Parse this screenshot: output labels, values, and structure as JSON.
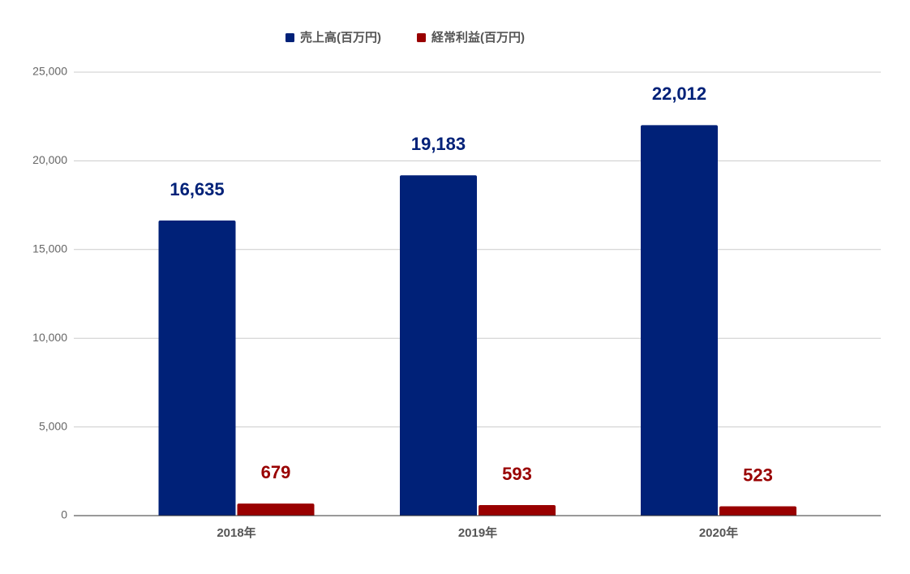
{
  "chart_data": {
    "type": "bar",
    "title": "",
    "xlabel": "",
    "ylabel": "",
    "categories": [
      "2018年",
      "2019年",
      "2020年"
    ],
    "series": [
      {
        "name": "売上高(百万円)",
        "values": [
          16635,
          19183,
          22012
        ],
        "labels": [
          "16,635",
          "19,183",
          "22,012"
        ],
        "color": "#002178"
      },
      {
        "name": "経常利益(百万円)",
        "values": [
          679,
          593,
          523
        ],
        "labels": [
          "679",
          "593",
          "523"
        ],
        "color": "#990000"
      }
    ],
    "ylim": [
      0,
      25000
    ],
    "yticks": [
      0,
      5000,
      10000,
      15000,
      20000,
      25000
    ],
    "ytick_labels": [
      "0",
      "5,000",
      "10,000",
      "15,000",
      "20,000",
      "25,000"
    ],
    "grid": true,
    "legend_position": "top-center",
    "data_labels": true
  },
  "colors": {
    "gridline": "#cccccc",
    "axis": "#333333",
    "tick_text": "#666666",
    "legend_text": "#555555"
  }
}
